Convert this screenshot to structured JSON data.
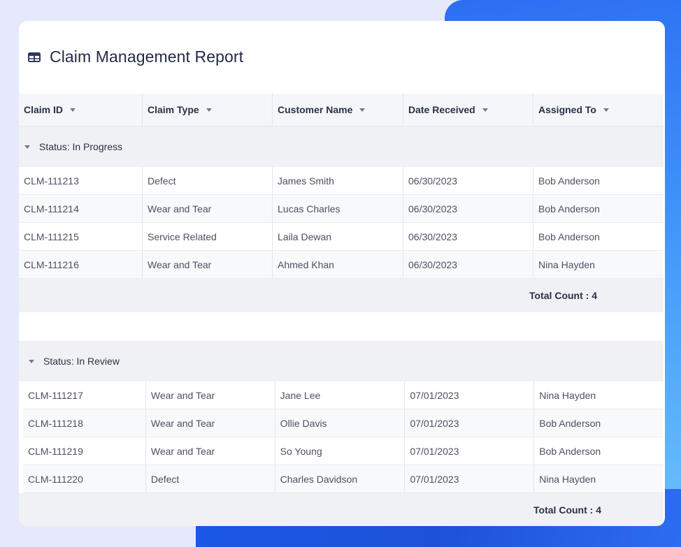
{
  "report": {
    "title": "Claim Management Report"
  },
  "columns": [
    "Claim ID",
    "Claim Type",
    "Customer Name",
    "Date Received",
    "Assigned To"
  ],
  "groups": [
    {
      "label": "Status: In Progress",
      "rows": [
        [
          "CLM-111213",
          "Defect",
          "James Smith",
          "06/30/2023",
          "Bob Anderson"
        ],
        [
          "CLM-111214",
          "Wear and Tear",
          "Lucas Charles",
          "06/30/2023",
          "Bob Anderson"
        ],
        [
          "CLM-111215",
          "Service Related",
          "Laila Dewan",
          "06/30/2023",
          "Bob Anderson"
        ],
        [
          "CLM-111216",
          "Wear and Tear",
          "Ahmed Khan",
          "06/30/2023",
          "Nina Hayden"
        ]
      ],
      "total": "Total Count : 4"
    },
    {
      "label": "Status: In Review",
      "rows": [
        [
          "CLM-111217",
          "Wear and Tear",
          "Jane Lee",
          "07/01/2023",
          "Nina Hayden"
        ],
        [
          "CLM-111218",
          "Wear and Tear",
          "Ollie Davis",
          "07/01/2023",
          "Bob Anderson"
        ],
        [
          "CLM-111219",
          "Wear and Tear",
          "So Young",
          "07/01/2023",
          "Bob Anderson"
        ],
        [
          "CLM-111220",
          "Defect",
          "Charles Davidson",
          "07/01/2023",
          "Nina Hayden"
        ]
      ],
      "total": "Total Count : 4"
    }
  ],
  "colors": {
    "accent_gradient_start": "#1e63f0",
    "accent_gradient_end": "#6cc4fd",
    "page_background": "#e6e9fb",
    "header_background": "#f5f6fa",
    "group_background": "#f0f1f5"
  },
  "icons": {
    "title_icon": "table-icon",
    "sort_icon": "chevron-down-icon",
    "group_toggle_icon": "caret-down-icon"
  }
}
